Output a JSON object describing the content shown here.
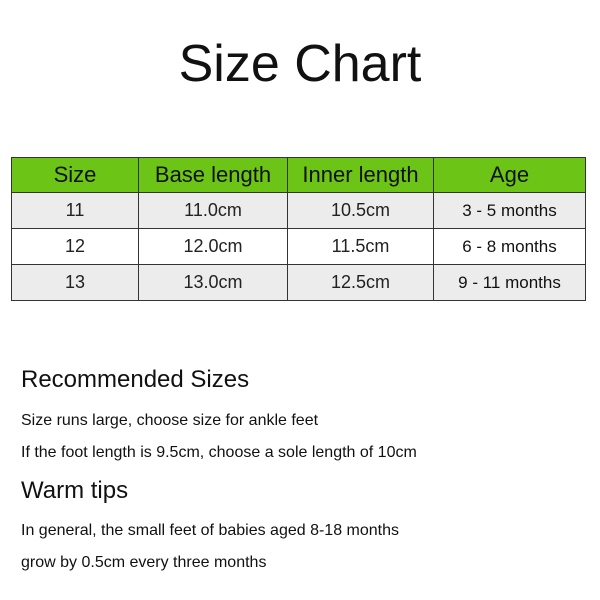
{
  "title": "Size Chart",
  "colors": {
    "header_bg": "#6cc417",
    "row_alt_bg": "#ececec"
  },
  "table": {
    "headers": [
      "Size",
      "Base length",
      "Inner length",
      "Age"
    ],
    "rows": [
      [
        "11",
        "11.0cm",
        "10.5cm",
        "3 - 5 months"
      ],
      [
        "12",
        "12.0cm",
        "11.5cm",
        "6 - 8 months"
      ],
      [
        "13",
        "13.0cm",
        "12.5cm",
        "9 - 11 months"
      ]
    ]
  },
  "recommended": {
    "heading": "Recommended Sizes",
    "lines": [
      "Size runs large, choose size for ankle feet",
      "If the foot length is 9.5cm, choose a sole length of 10cm"
    ]
  },
  "tips": {
    "heading": "Warm tips",
    "lines": [
      "In general, the small feet of babies aged 8-18 months",
      "grow by 0.5cm every three months"
    ]
  }
}
